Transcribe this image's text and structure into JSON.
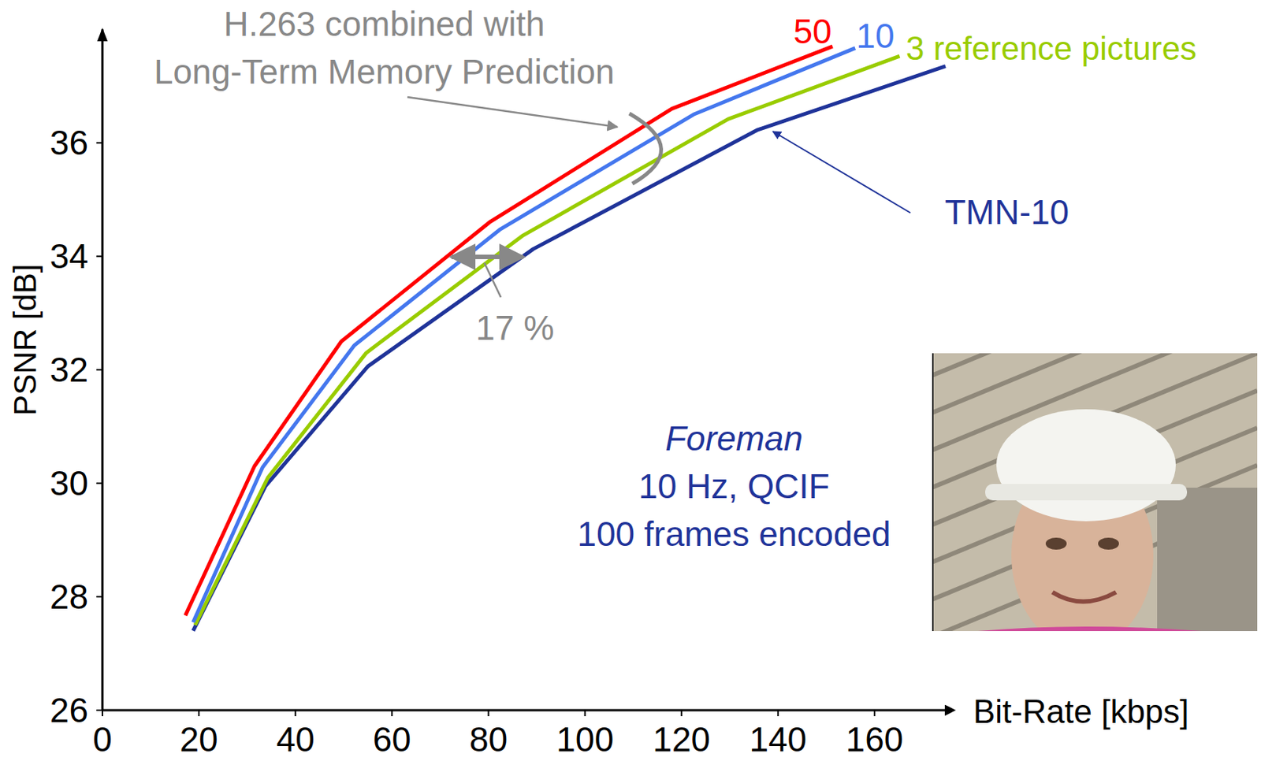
{
  "chart_data": {
    "type": "line",
    "x_label": "Bit-Rate [kbps]",
    "y_label": "PSNR [dB]",
    "xlim": [
      0,
      175
    ],
    "ylim": [
      26,
      38
    ],
    "xticks": [
      0,
      20,
      40,
      60,
      80,
      100,
      120,
      140,
      160
    ],
    "yticks": [
      26,
      28,
      30,
      32,
      34,
      36
    ],
    "grid": false,
    "series": [
      {
        "name": "TMN-10",
        "color": "#1f3399",
        "x": [
          18.8,
          33.8,
          55.0,
          89.3,
          135.8,
          174.7
        ],
        "values": [
          27.4,
          29.95,
          32.06,
          34.13,
          36.23,
          37.35
        ]
      },
      {
        "name": "3 reference pictures",
        "color": "#99cc00",
        "x": [
          19.2,
          34.3,
          54.7,
          87.2,
          129.7,
          165.2
        ],
        "values": [
          27.5,
          30.1,
          32.3,
          34.37,
          36.42,
          37.53
        ]
      },
      {
        "name": "10",
        "color": "#4477ee",
        "x": [
          18.8,
          33.2,
          52.2,
          82.5,
          122.5,
          156.0
        ],
        "values": [
          27.55,
          30.28,
          32.43,
          34.48,
          36.5,
          37.67
        ]
      },
      {
        "name": "50",
        "color": "#ff0000",
        "x": [
          17.2,
          31.5,
          49.5,
          80.2,
          118.0,
          151.3
        ],
        "values": [
          27.67,
          30.3,
          32.5,
          34.6,
          36.6,
          37.7
        ]
      }
    ],
    "annotations": [
      "H.263 combined with",
      "Long-Term Memory Prediction",
      "17 %",
      "Foreman",
      "10 Hz, QCIF",
      "100 frames encoded"
    ]
  }
}
